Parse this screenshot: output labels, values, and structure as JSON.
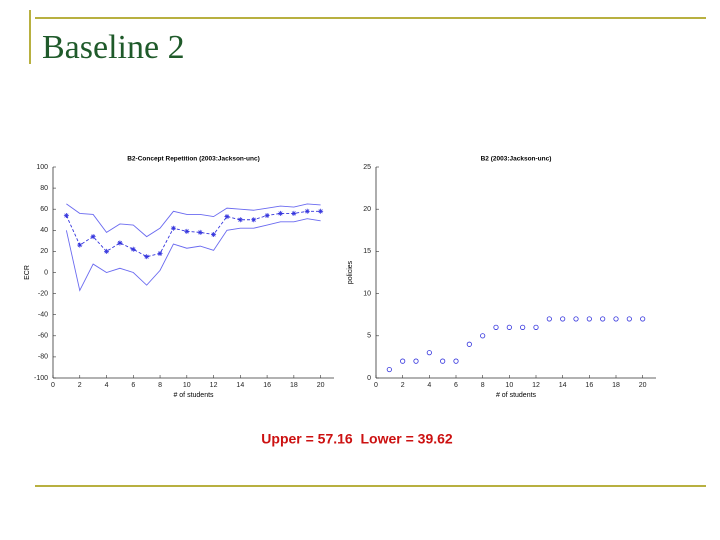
{
  "title": "Baseline 2",
  "caption": "Upper = 57.16  Lower = 39.62",
  "chart_data": [
    {
      "type": "line",
      "title": "B2-Concept Repetition (2003:Jackson-unc)",
      "xlabel": "# of students",
      "ylabel": "ECR",
      "x": [
        1,
        2,
        3,
        4,
        5,
        6,
        7,
        8,
        9,
        10,
        11,
        12,
        13,
        14,
        15,
        16,
        17,
        18,
        19,
        20
      ],
      "xlim": [
        0,
        21
      ],
      "xticks": [
        0,
        2,
        4,
        6,
        8,
        10,
        12,
        14,
        16,
        18,
        20
      ],
      "ylim": [
        -100,
        100
      ],
      "yticks": [
        -100,
        -80,
        -60,
        -40,
        -20,
        0,
        20,
        40,
        60,
        80,
        100
      ],
      "series": [
        {
          "color": "#6a6af0",
          "linestyle": "solid",
          "marker": "none",
          "values": [
            65,
            56,
            55,
            38,
            46,
            45,
            34,
            42,
            58,
            55,
            55,
            53,
            61,
            60,
            59,
            61,
            63,
            62,
            65,
            64
          ]
        },
        {
          "color": "#6a6af0",
          "linestyle": "solid",
          "marker": "none",
          "values": [
            40,
            -17,
            8,
            0,
            4,
            0,
            -12,
            2,
            27,
            23,
            25,
            21,
            40,
            42,
            42,
            45,
            48,
            48,
            51,
            49
          ]
        },
        {
          "color": "#3333dd",
          "linestyle": "dashed",
          "marker": "star",
          "values": [
            54,
            26,
            34,
            20,
            28,
            22,
            15,
            18,
            42,
            39,
            38,
            36,
            53,
            50,
            50,
            54,
            56,
            56,
            58,
            58
          ]
        }
      ]
    },
    {
      "type": "scatter",
      "title": "B2 (2003:Jackson-unc)",
      "xlabel": "# of students",
      "ylabel": "policies",
      "x": [
        1,
        2,
        3,
        4,
        5,
        6,
        7,
        8,
        9,
        10,
        11,
        12,
        13,
        14,
        15,
        16,
        17,
        18,
        19,
        20
      ],
      "xlim": [
        0,
        21
      ],
      "xticks": [
        0,
        2,
        4,
        6,
        8,
        10,
        12,
        14,
        16,
        18,
        20
      ],
      "ylim": [
        0,
        25
      ],
      "yticks": [
        0,
        5,
        10,
        15,
        20,
        25
      ],
      "series": [
        {
          "color": "#3333dd",
          "marker": "circle",
          "values": [
            1,
            2,
            2,
            3,
            2,
            2,
            4,
            5,
            6,
            6,
            6,
            6,
            7,
            7,
            7,
            7,
            7,
            7,
            7,
            7
          ]
        }
      ]
    }
  ]
}
